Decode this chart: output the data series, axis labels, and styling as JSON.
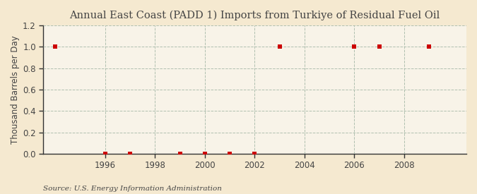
{
  "title": "Annual East Coast (PADD 1) Imports from Turkiye of Residual Fuel Oil",
  "ylabel": "Thousand Barrels per Day",
  "source": "Source: U.S. Energy Information Administration",
  "years": [
    1994,
    1996,
    1997,
    1999,
    2000,
    2001,
    2002,
    2003,
    2006,
    2007,
    2009
  ],
  "values": [
    1.0,
    0.0,
    0.0,
    0.0,
    0.0,
    0.0,
    0.0,
    1.0,
    1.0,
    1.0,
    1.0
  ],
  "xlim": [
    1993.5,
    2010.5
  ],
  "ylim": [
    0.0,
    1.2
  ],
  "yticks": [
    0.0,
    0.2,
    0.4,
    0.6,
    0.8,
    1.0,
    1.2
  ],
  "xticks": [
    1996,
    1998,
    2000,
    2002,
    2004,
    2006,
    2008
  ],
  "marker_color": "#cc0000",
  "marker_size": 4,
  "bg_outer": "#f5e9d0",
  "bg_inner": "#f8f3e8",
  "grid_color": "#b0c0b0",
  "spine_color": "#333333",
  "title_fontsize": 10.5,
  "axis_fontsize": 8.5,
  "tick_fontsize": 8.5,
  "source_fontsize": 7.5,
  "text_color": "#444444"
}
